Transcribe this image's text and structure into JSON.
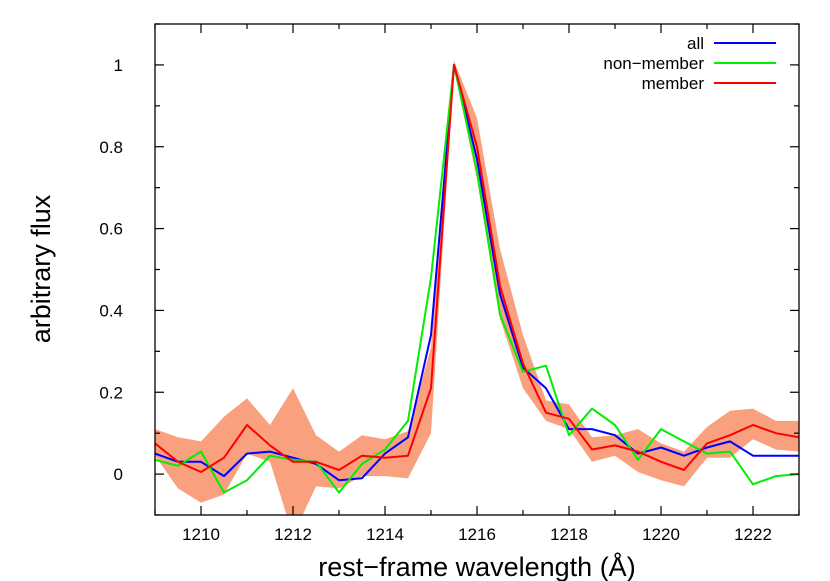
{
  "chart_data": {
    "type": "line",
    "xlabel": "rest−frame wavelength (Å)",
    "ylabel": "arbitrary flux",
    "xlim": [
      1209,
      1223
    ],
    "ylim": [
      -0.1,
      1.1
    ],
    "xticks": [
      1210,
      1212,
      1214,
      1216,
      1218,
      1220,
      1222
    ],
    "yticks": [
      0,
      0.2,
      0.4,
      0.6,
      0.8,
      1
    ],
    "ytick_labels": [
      "0",
      "0.2",
      "0.4",
      "0.6",
      "0.8",
      "1"
    ],
    "grid": false,
    "legend_position": "top-right",
    "band": {
      "series": "member",
      "color": "#f9a07f",
      "x": [
        1209,
        1209.5,
        1210,
        1210.5,
        1211,
        1211.5,
        1212,
        1212.5,
        1213,
        1213.5,
        1214,
        1214.5,
        1215,
        1215.5,
        1216,
        1216.5,
        1217,
        1217.5,
        1218,
        1218.5,
        1219,
        1219.5,
        1220,
        1220.5,
        1221,
        1221.5,
        1222,
        1222.5,
        1223
      ],
      "upper": [
        0.11,
        0.09,
        0.08,
        0.14,
        0.185,
        0.12,
        0.21,
        0.095,
        0.055,
        0.095,
        0.085,
        0.105,
        0.31,
        1.01,
        0.87,
        0.55,
        0.34,
        0.18,
        0.17,
        0.09,
        0.095,
        0.11,
        0.075,
        0.055,
        0.115,
        0.155,
        0.16,
        0.13,
        0.13
      ],
      "lower": [
        0.045,
        -0.035,
        -0.07,
        -0.05,
        0.05,
        0.03,
        -0.15,
        -0.03,
        -0.035,
        -0.005,
        -0.005,
        -0.01,
        0.1,
        0.99,
        0.72,
        0.38,
        0.21,
        0.13,
        0.11,
        0.03,
        0.045,
        0.005,
        -0.015,
        -0.03,
        0.04,
        0.04,
        0.085,
        0.06,
        0.055
      ]
    },
    "series": [
      {
        "name": "all",
        "color": "#0000ff",
        "x": [
          1209,
          1209.5,
          1210,
          1210.5,
          1211,
          1211.5,
          1212,
          1212.5,
          1213,
          1213.5,
          1214,
          1214.5,
          1215,
          1215.5,
          1216,
          1216.5,
          1217,
          1217.5,
          1218,
          1218.5,
          1219,
          1219.5,
          1220,
          1220.5,
          1221,
          1221.5,
          1222,
          1222.5,
          1223
        ],
        "y": [
          0.05,
          0.03,
          0.03,
          -0.005,
          0.05,
          0.055,
          0.04,
          0.025,
          -0.015,
          -0.01,
          0.05,
          0.09,
          0.34,
          1.0,
          0.77,
          0.44,
          0.26,
          0.21,
          0.11,
          0.11,
          0.095,
          0.05,
          0.065,
          0.045,
          0.065,
          0.08,
          0.045,
          0.045,
          0.045
        ]
      },
      {
        "name": "non−member",
        "color": "#00ee00",
        "x": [
          1209,
          1209.5,
          1210,
          1210.5,
          1211,
          1211.5,
          1212,
          1212.5,
          1213,
          1213.5,
          1214,
          1214.5,
          1215,
          1215.5,
          1216,
          1216.5,
          1217,
          1217.5,
          1218,
          1218.5,
          1219,
          1219.5,
          1220,
          1220.5,
          1221,
          1221.5,
          1222,
          1222.5,
          1223
        ],
        "y": [
          0.035,
          0.02,
          0.055,
          -0.045,
          -0.015,
          0.045,
          0.035,
          0.03,
          -0.045,
          0.025,
          0.06,
          0.13,
          0.48,
          1.0,
          0.74,
          0.39,
          0.25,
          0.265,
          0.095,
          0.16,
          0.12,
          0.035,
          0.11,
          0.08,
          0.05,
          0.055,
          -0.025,
          -0.005,
          0.0
        ]
      },
      {
        "name": "member",
        "color": "#ff0000",
        "x": [
          1209,
          1209.5,
          1210,
          1210.5,
          1211,
          1211.5,
          1212,
          1212.5,
          1213,
          1213.5,
          1214,
          1214.5,
          1215,
          1215.5,
          1216,
          1216.5,
          1217,
          1217.5,
          1218,
          1218.5,
          1219,
          1219.5,
          1220,
          1220.5,
          1221,
          1221.5,
          1222,
          1222.5,
          1223
        ],
        "y": [
          0.075,
          0.03,
          0.005,
          0.04,
          0.12,
          0.07,
          0.03,
          0.03,
          0.01,
          0.045,
          0.04,
          0.045,
          0.21,
          1.0,
          0.8,
          0.46,
          0.27,
          0.15,
          0.135,
          0.06,
          0.07,
          0.055,
          0.03,
          0.01,
          0.075,
          0.095,
          0.12,
          0.1,
          0.09
        ]
      }
    ]
  }
}
